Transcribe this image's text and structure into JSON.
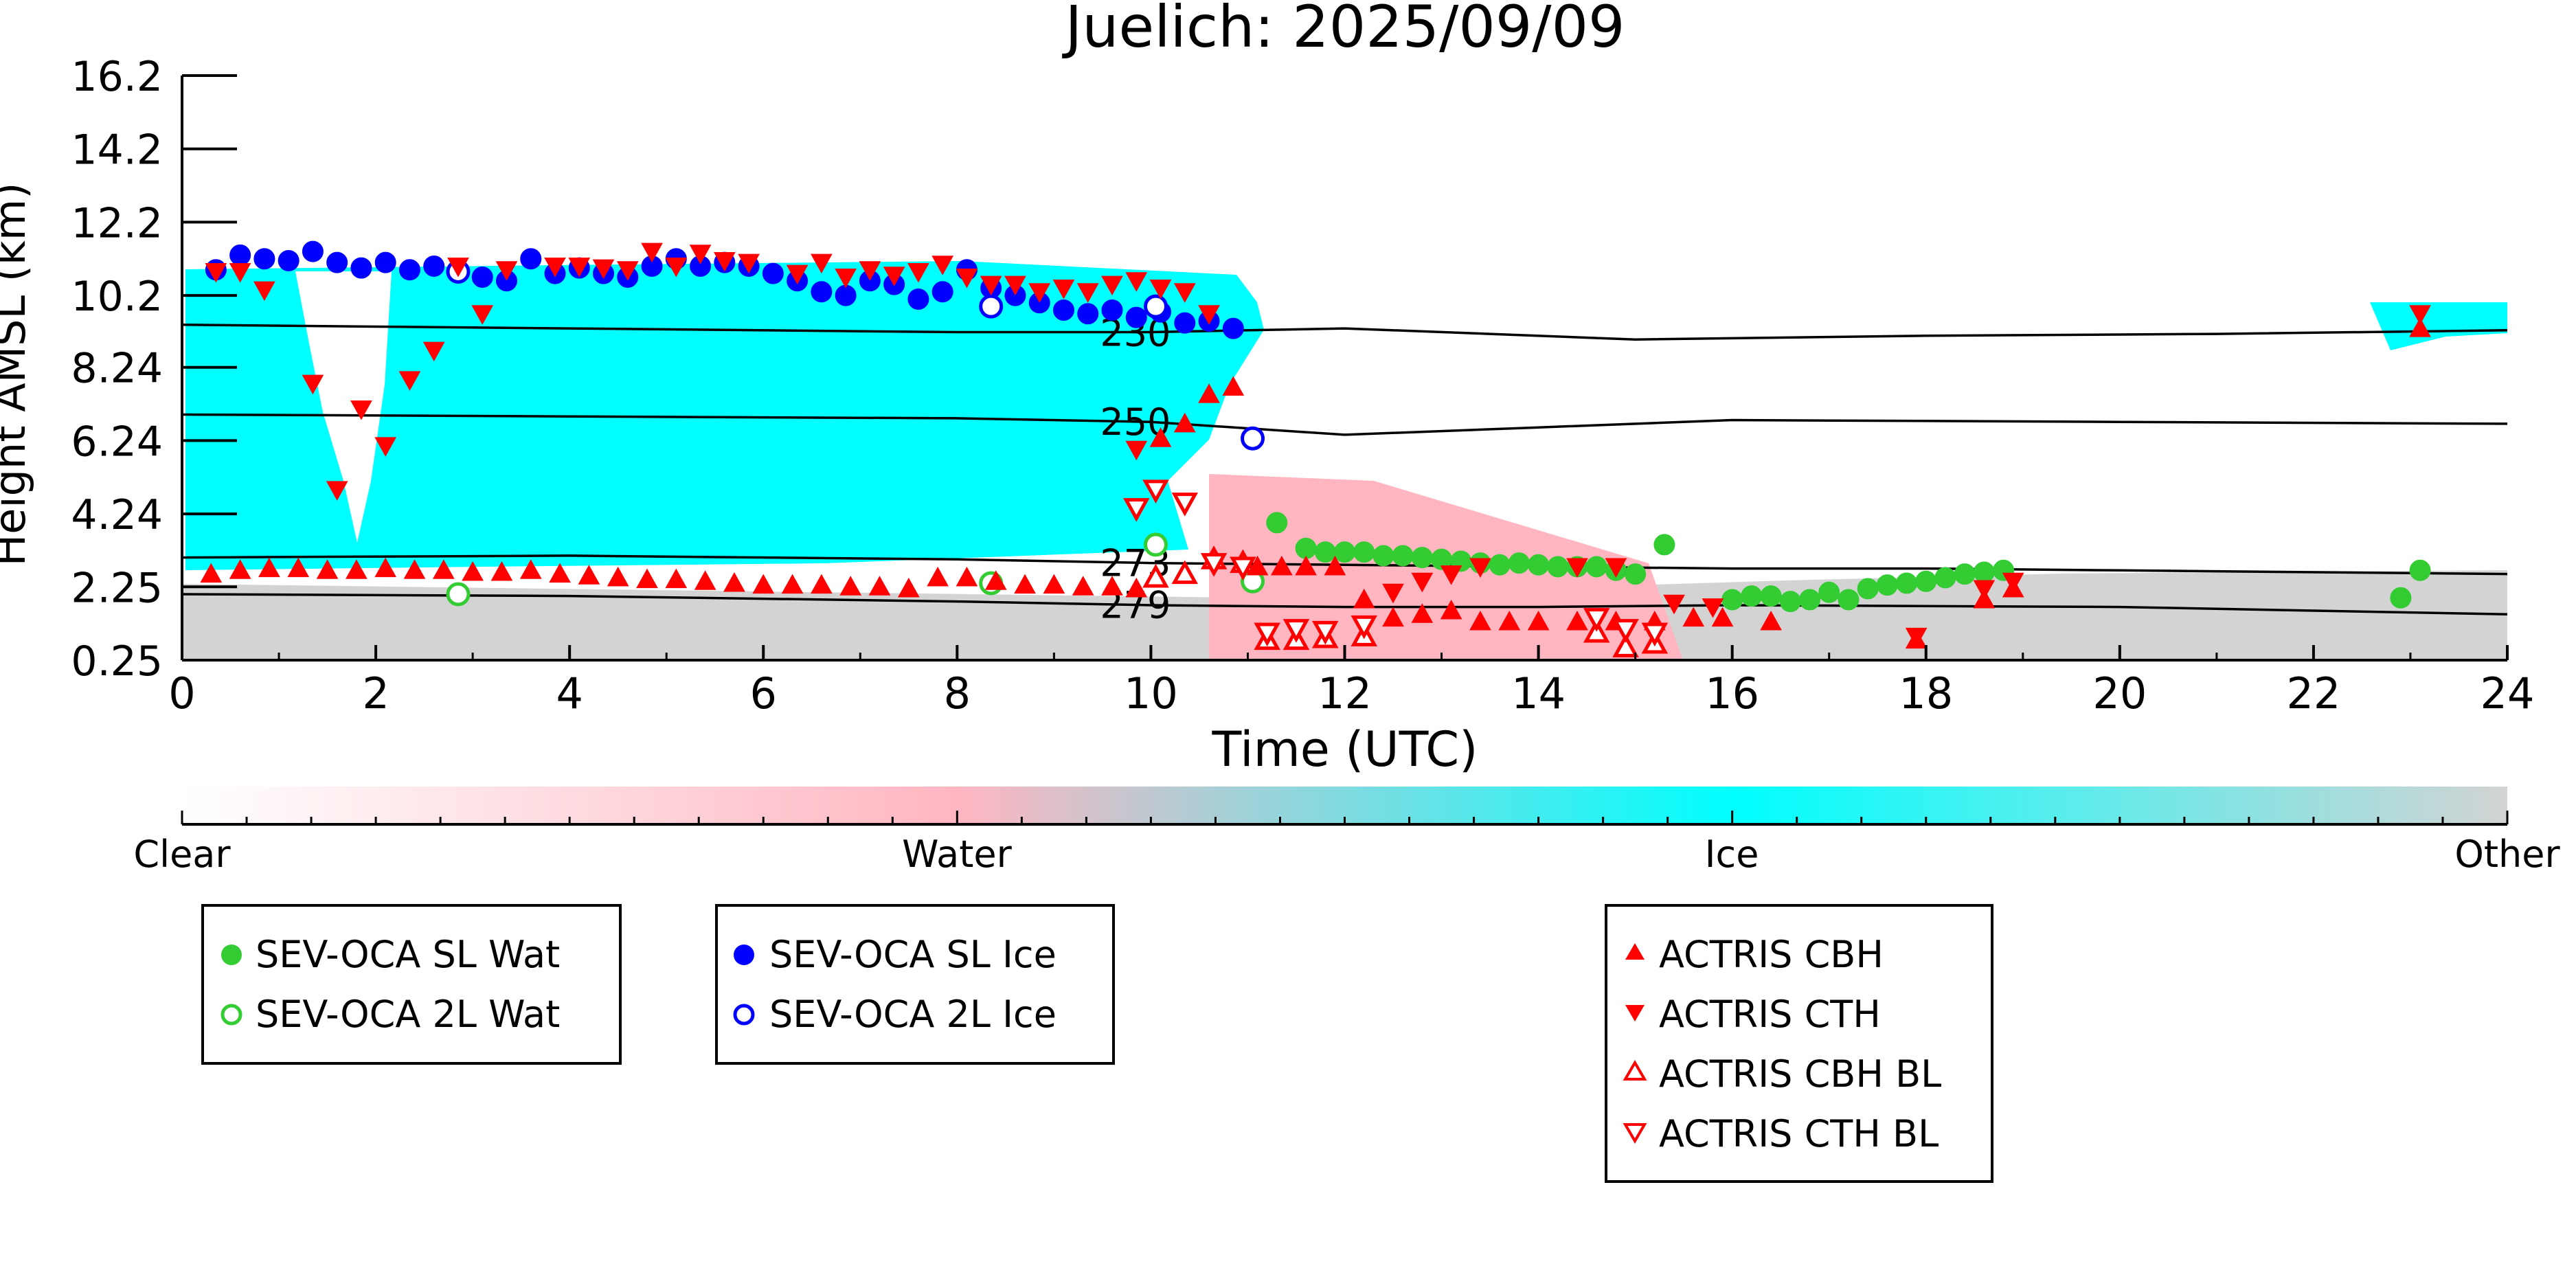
{
  "chart_data": {
    "type": "scatter",
    "title": "Juelich: 2025/09/09",
    "xlabel": "Time (UTC)",
    "ylabel": "Height AMSL (km)",
    "xlim": [
      0,
      24
    ],
    "ylim": [
      0.25,
      16.2
    ],
    "x_ticks": [
      "0",
      "2",
      "4",
      "6",
      "8",
      "10",
      "12",
      "14",
      "16",
      "18",
      "20",
      "22",
      "24"
    ],
    "y_ticks": [
      "0.25",
      "2.25",
      "4.24",
      "6.24",
      "8.24",
      "10.2",
      "12.2",
      "14.2",
      "16.2"
    ],
    "grid": false,
    "colorbar": {
      "labels": [
        "Clear",
        "Water",
        "Ice",
        "Other"
      ],
      "colors": [
        "#ffffff",
        "#ffb6c1",
        "#00ffff",
        "#d3d3d3"
      ]
    },
    "contours": [
      {
        "label": "230",
        "points": [
          [
            0,
            9.4
          ],
          [
            4,
            9.3
          ],
          [
            8,
            9.2
          ],
          [
            10,
            9.2
          ],
          [
            12,
            9.3
          ],
          [
            15,
            9.0
          ],
          [
            18,
            9.1
          ],
          [
            21,
            9.15
          ],
          [
            24,
            9.25
          ]
        ]
      },
      {
        "label": "250",
        "points": [
          [
            0,
            6.95
          ],
          [
            4,
            6.9
          ],
          [
            8,
            6.85
          ],
          [
            10,
            6.75
          ],
          [
            12,
            6.4
          ],
          [
            14,
            6.6
          ],
          [
            16,
            6.8
          ],
          [
            20,
            6.75
          ],
          [
            24,
            6.7
          ]
        ]
      },
      {
        "label": "273",
        "points": [
          [
            0,
            3.05
          ],
          [
            4,
            3.1
          ],
          [
            8,
            3.0
          ],
          [
            10,
            2.9
          ],
          [
            12,
            2.85
          ],
          [
            14,
            2.8
          ],
          [
            16,
            2.75
          ],
          [
            18,
            2.75
          ],
          [
            20,
            2.7
          ],
          [
            24,
            2.6
          ]
        ]
      },
      {
        "label": "279",
        "points": [
          [
            0,
            2.05
          ],
          [
            4,
            2.0
          ],
          [
            8,
            1.85
          ],
          [
            10,
            1.75
          ],
          [
            12,
            1.7
          ],
          [
            14,
            1.7
          ],
          [
            16,
            1.75
          ],
          [
            20,
            1.7
          ],
          [
            24,
            1.5
          ]
        ]
      }
    ],
    "legends": [
      {
        "position": "bottom-left",
        "entries": [
          "SEV-OCA SL Wat",
          "SEV-OCA 2L Wat"
        ]
      },
      {
        "position": "bottom-center-left",
        "entries": [
          "SEV-OCA SL Ice",
          "SEV-OCA 2L Ice"
        ]
      },
      {
        "position": "bottom-center-right",
        "entries": [
          "ACTRIS CBH",
          "ACTRIS CTH",
          "ACTRIS CBH BL",
          "ACTRIS CTH BL"
        ]
      }
    ],
    "series": [
      {
        "name": "SEV-OCA SL Wat",
        "marker": "circle-filled",
        "color": "#33cc33",
        "points": [
          [
            11.3,
            4.0
          ],
          [
            11.6,
            3.3
          ],
          [
            11.8,
            3.2
          ],
          [
            12.0,
            3.2
          ],
          [
            12.2,
            3.2
          ],
          [
            12.4,
            3.1
          ],
          [
            12.6,
            3.1
          ],
          [
            12.8,
            3.05
          ],
          [
            13.0,
            3.0
          ],
          [
            13.2,
            2.95
          ],
          [
            13.4,
            2.9
          ],
          [
            13.6,
            2.85
          ],
          [
            13.8,
            2.9
          ],
          [
            14.0,
            2.85
          ],
          [
            14.2,
            2.8
          ],
          [
            14.4,
            2.8
          ],
          [
            14.6,
            2.8
          ],
          [
            14.8,
            2.7
          ],
          [
            15.0,
            2.6
          ],
          [
            15.3,
            3.4
          ],
          [
            16.0,
            1.9
          ],
          [
            16.2,
            2.0
          ],
          [
            16.4,
            2.0
          ],
          [
            16.6,
            1.85
          ],
          [
            16.8,
            1.9
          ],
          [
            17.0,
            2.1
          ],
          [
            17.2,
            1.9
          ],
          [
            17.4,
            2.2
          ],
          [
            17.6,
            2.3
          ],
          [
            17.8,
            2.35
          ],
          [
            18.0,
            2.4
          ],
          [
            18.2,
            2.5
          ],
          [
            18.4,
            2.6
          ],
          [
            18.6,
            2.65
          ],
          [
            18.8,
            2.7
          ],
          [
            22.9,
            1.95
          ],
          [
            23.1,
            2.7
          ]
        ]
      },
      {
        "name": "SEV-OCA 2L Wat",
        "marker": "circle-open",
        "color": "#33cc33",
        "points": [
          [
            2.85,
            2.05
          ],
          [
            8.35,
            2.35
          ],
          [
            10.05,
            3.4
          ],
          [
            11.05,
            2.4
          ]
        ]
      },
      {
        "name": "SEV-OCA SL Ice",
        "marker": "circle-filled",
        "color": "#0000ff",
        "points": [
          [
            0.35,
            10.9
          ],
          [
            0.6,
            11.3
          ],
          [
            0.85,
            11.2
          ],
          [
            1.1,
            11.15
          ],
          [
            1.35,
            11.4
          ],
          [
            1.6,
            11.1
          ],
          [
            1.85,
            10.95
          ],
          [
            2.1,
            11.1
          ],
          [
            2.35,
            10.9
          ],
          [
            2.6,
            11.0
          ],
          [
            3.1,
            10.7
          ],
          [
            3.35,
            10.6
          ],
          [
            3.6,
            11.2
          ],
          [
            3.85,
            10.8
          ],
          [
            4.1,
            10.95
          ],
          [
            4.35,
            10.8
          ],
          [
            4.6,
            10.7
          ],
          [
            4.85,
            11.0
          ],
          [
            5.1,
            11.2
          ],
          [
            5.35,
            11.0
          ],
          [
            5.6,
            11.1
          ],
          [
            5.85,
            11.0
          ],
          [
            6.1,
            10.8
          ],
          [
            6.35,
            10.6
          ],
          [
            6.6,
            10.3
          ],
          [
            6.85,
            10.2
          ],
          [
            7.1,
            10.6
          ],
          [
            7.35,
            10.5
          ],
          [
            7.6,
            10.1
          ],
          [
            7.85,
            10.3
          ],
          [
            8.1,
            10.9
          ],
          [
            8.35,
            10.4
          ],
          [
            8.6,
            10.2
          ],
          [
            8.85,
            10.0
          ],
          [
            9.1,
            9.8
          ],
          [
            9.35,
            9.7
          ],
          [
            9.6,
            9.8
          ],
          [
            9.85,
            9.6
          ],
          [
            10.1,
            9.75
          ],
          [
            10.35,
            9.45
          ],
          [
            10.6,
            9.5
          ],
          [
            10.85,
            9.3
          ]
        ]
      },
      {
        "name": "SEV-OCA 2L Ice",
        "marker": "circle-open",
        "color": "#0000ff",
        "points": [
          [
            2.85,
            10.85
          ],
          [
            8.35,
            9.9
          ],
          [
            10.05,
            9.9
          ],
          [
            11.05,
            6.3
          ]
        ]
      },
      {
        "name": "ACTRIS CBH",
        "marker": "triangle-up-filled",
        "color": "#ff0000",
        "points": [
          [
            0.3,
            2.6
          ],
          [
            0.6,
            2.7
          ],
          [
            0.9,
            2.75
          ],
          [
            1.2,
            2.75
          ],
          [
            1.5,
            2.7
          ],
          [
            1.8,
            2.7
          ],
          [
            2.1,
            2.75
          ],
          [
            2.4,
            2.7
          ],
          [
            2.7,
            2.7
          ],
          [
            3.0,
            2.65
          ],
          [
            3.3,
            2.65
          ],
          [
            3.6,
            2.7
          ],
          [
            3.9,
            2.6
          ],
          [
            4.2,
            2.55
          ],
          [
            4.5,
            2.5
          ],
          [
            4.8,
            2.45
          ],
          [
            5.1,
            2.45
          ],
          [
            5.4,
            2.4
          ],
          [
            5.7,
            2.35
          ],
          [
            6.0,
            2.3
          ],
          [
            6.3,
            2.3
          ],
          [
            6.6,
            2.3
          ],
          [
            6.9,
            2.25
          ],
          [
            7.2,
            2.25
          ],
          [
            7.5,
            2.2
          ],
          [
            7.8,
            2.5
          ],
          [
            8.1,
            2.5
          ],
          [
            8.4,
            2.4
          ],
          [
            8.7,
            2.3
          ],
          [
            9.0,
            2.3
          ],
          [
            9.3,
            2.25
          ],
          [
            9.6,
            2.25
          ],
          [
            9.85,
            2.2
          ],
          [
            10.1,
            6.3
          ],
          [
            10.35,
            6.7
          ],
          [
            10.6,
            7.5
          ],
          [
            10.85,
            7.7
          ],
          [
            11.1,
            2.8
          ],
          [
            11.35,
            2.8
          ],
          [
            11.6,
            2.8
          ],
          [
            11.9,
            2.8
          ],
          [
            12.2,
            1.9
          ],
          [
            12.5,
            1.4
          ],
          [
            12.8,
            1.5
          ],
          [
            13.1,
            1.6
          ],
          [
            13.4,
            1.3
          ],
          [
            13.7,
            1.3
          ],
          [
            14.0,
            1.3
          ],
          [
            14.4,
            1.3
          ],
          [
            14.8,
            1.3
          ],
          [
            15.2,
            1.3
          ],
          [
            15.6,
            1.4
          ],
          [
            15.9,
            1.4
          ],
          [
            16.4,
            1.3
          ],
          [
            17.9,
            0.8
          ],
          [
            18.6,
            1.9
          ],
          [
            18.9,
            2.2
          ],
          [
            23.1,
            9.3
          ]
        ]
      },
      {
        "name": "ACTRIS CTH",
        "marker": "triangle-down-filled",
        "color": "#ff0000",
        "points": [
          [
            0.35,
            10.85
          ],
          [
            0.6,
            10.85
          ],
          [
            0.85,
            10.35
          ],
          [
            1.35,
            7.8
          ],
          [
            1.6,
            4.9
          ],
          [
            1.85,
            7.1
          ],
          [
            2.1,
            6.1
          ],
          [
            2.35,
            7.9
          ],
          [
            2.6,
            8.7
          ],
          [
            2.85,
            11.0
          ],
          [
            3.1,
            9.7
          ],
          [
            3.35,
            10.9
          ],
          [
            3.85,
            11.0
          ],
          [
            4.1,
            11.0
          ],
          [
            4.35,
            10.95
          ],
          [
            4.6,
            10.9
          ],
          [
            4.85,
            11.4
          ],
          [
            5.1,
            11.0
          ],
          [
            5.35,
            11.35
          ],
          [
            5.6,
            11.15
          ],
          [
            5.85,
            11.1
          ],
          [
            6.35,
            10.8
          ],
          [
            6.6,
            11.1
          ],
          [
            6.85,
            10.7
          ],
          [
            7.1,
            10.9
          ],
          [
            7.35,
            10.75
          ],
          [
            7.6,
            10.85
          ],
          [
            7.85,
            11.05
          ],
          [
            8.1,
            10.7
          ],
          [
            8.35,
            10.5
          ],
          [
            8.6,
            10.5
          ],
          [
            8.85,
            10.3
          ],
          [
            9.1,
            10.4
          ],
          [
            9.35,
            10.3
          ],
          [
            9.6,
            10.5
          ],
          [
            9.85,
            10.6
          ],
          [
            10.1,
            10.4
          ],
          [
            10.35,
            10.3
          ],
          [
            10.6,
            9.7
          ],
          [
            9.85,
            6.0
          ],
          [
            12.5,
            2.1
          ],
          [
            12.8,
            2.4
          ],
          [
            13.1,
            2.6
          ],
          [
            13.4,
            2.8
          ],
          [
            14.4,
            2.8
          ],
          [
            14.8,
            2.8
          ],
          [
            15.4,
            1.8
          ],
          [
            15.8,
            1.7
          ],
          [
            17.9,
            0.9
          ],
          [
            18.6,
            2.2
          ],
          [
            18.9,
            2.4
          ],
          [
            23.1,
            9.7
          ]
        ]
      },
      {
        "name": "ACTRIS CBH BL",
        "marker": "triangle-up-open",
        "color": "#ff0000",
        "points": [
          [
            10.05,
            2.5
          ],
          [
            10.35,
            2.6
          ],
          [
            10.65,
            3.0
          ],
          [
            10.95,
            2.9
          ],
          [
            11.2,
            0.8
          ],
          [
            11.5,
            0.8
          ],
          [
            11.8,
            0.85
          ],
          [
            12.2,
            0.9
          ],
          [
            14.6,
            1.0
          ],
          [
            14.9,
            0.6
          ],
          [
            15.2,
            0.7
          ]
        ]
      },
      {
        "name": "ACTRIS CTH BL",
        "marker": "triangle-down-open",
        "color": "#ff0000",
        "points": [
          [
            9.85,
            4.4
          ],
          [
            10.05,
            4.9
          ],
          [
            10.35,
            4.55
          ],
          [
            10.65,
            2.9
          ],
          [
            10.95,
            2.8
          ],
          [
            11.2,
            1.0
          ],
          [
            11.5,
            1.1
          ],
          [
            11.8,
            1.05
          ],
          [
            12.2,
            1.2
          ],
          [
            14.6,
            1.4
          ],
          [
            14.9,
            1.1
          ],
          [
            15.2,
            1.0
          ]
        ]
      }
    ]
  }
}
